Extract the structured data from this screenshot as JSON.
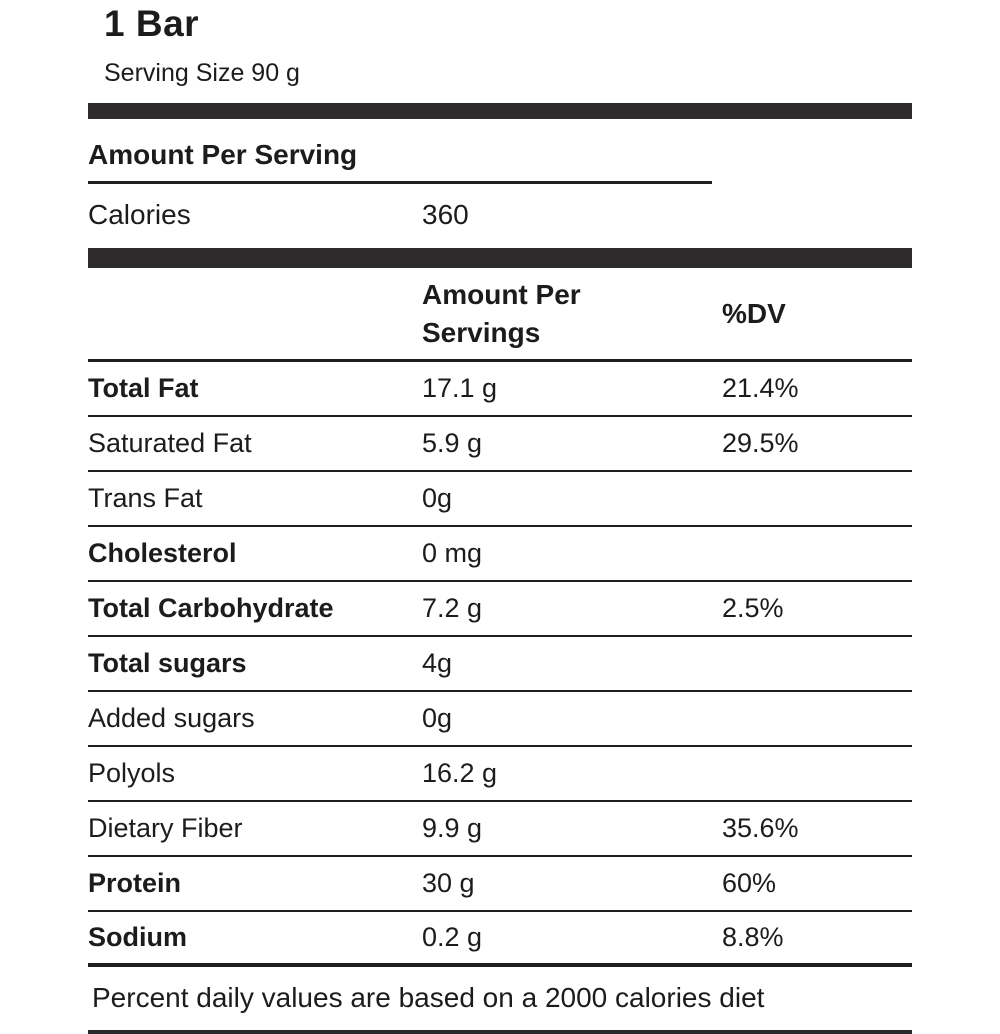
{
  "label": {
    "title": "1 Bar",
    "serving_size": "Serving Size 90 g",
    "amount_per_serving_heading": "Amount Per Serving",
    "calories": {
      "name": "Calories",
      "value": "360"
    },
    "columns": {
      "amount_header": "Amount Per Servings",
      "dv_header": "%DV"
    },
    "rows": [
      {
        "name": "Total Fat",
        "amount": "17.1 g",
        "dv": "21.4%",
        "bold": true
      },
      {
        "name": "Saturated Fat",
        "amount": "5.9 g",
        "dv": "29.5%",
        "bold": false
      },
      {
        "name": "Trans Fat",
        "amount": "0g",
        "dv": "",
        "bold": false
      },
      {
        "name": "Cholesterol",
        "amount": "0 mg",
        "dv": "",
        "bold": true
      },
      {
        "name": "Total Carbohydrate",
        "amount": "7.2 g",
        "dv": "2.5%",
        "bold": true
      },
      {
        "name": "Total sugars",
        "amount": "4g",
        "dv": "",
        "bold": true
      },
      {
        "name": "Added sugars",
        "amount": "0g",
        "dv": "",
        "bold": false
      },
      {
        "name": "Polyols",
        "amount": "16.2 g",
        "dv": "",
        "bold": false
      },
      {
        "name": "Dietary Fiber",
        "amount": "9.9 g",
        "dv": "35.6%",
        "bold": false
      },
      {
        "name": "Protein",
        "amount": "30 g",
        "dv": "60%",
        "bold": true
      },
      {
        "name": "Sodium",
        "amount": "0.2 g",
        "dv": "8.8%",
        "bold": true
      }
    ],
    "footnote": "Percent daily values are based on a 2000 calories diet",
    "colors": {
      "bar": "#2d2b2c",
      "text": "#1c1c1c",
      "line": "#1f1f1f"
    }
  }
}
